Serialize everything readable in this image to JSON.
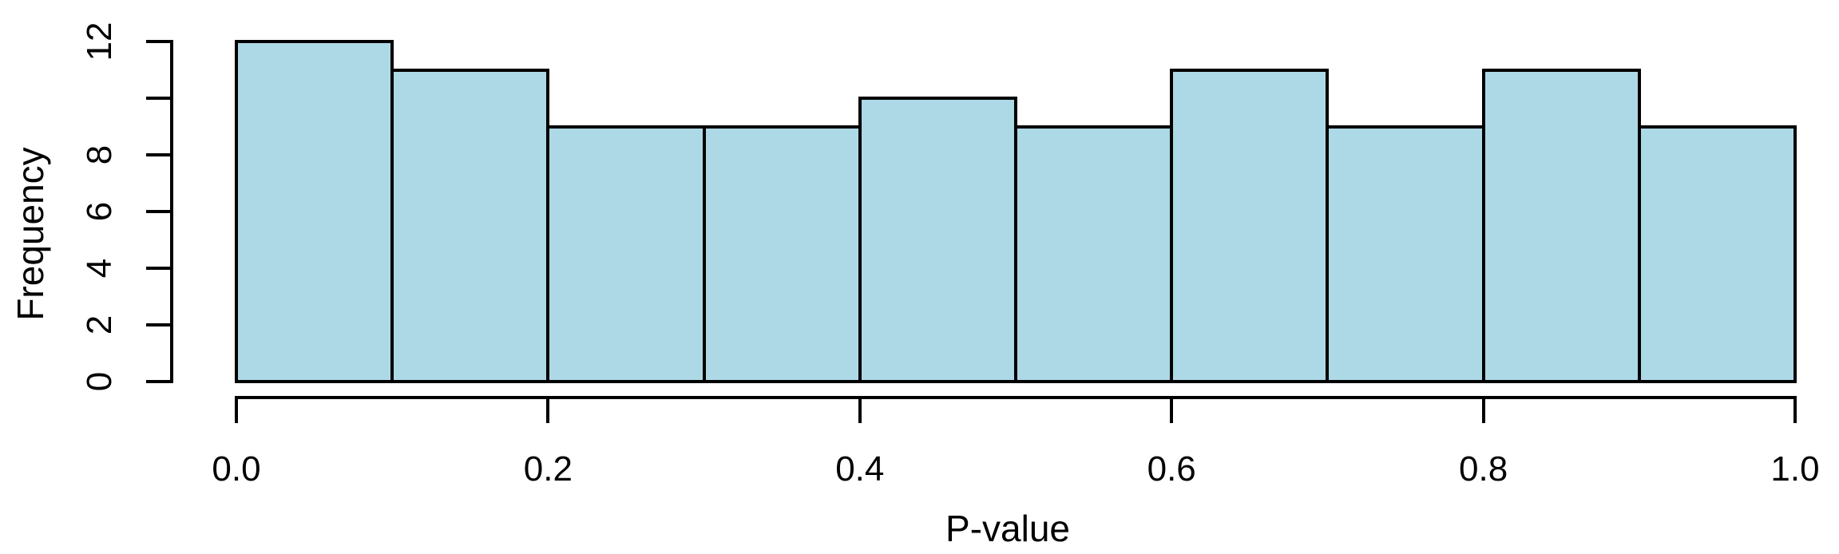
{
  "chart_data": {
    "type": "bar",
    "subtype": "histogram",
    "title": "",
    "xlabel": "P-value",
    "ylabel": "Frequency",
    "bin_start": 0.0,
    "bin_width": 0.1,
    "categories": [
      "0.0-0.1",
      "0.1-0.2",
      "0.2-0.3",
      "0.3-0.4",
      "0.4-0.5",
      "0.5-0.6",
      "0.6-0.7",
      "0.7-0.8",
      "0.8-0.9",
      "0.9-1.0"
    ],
    "values": [
      12,
      11,
      9,
      9,
      10,
      9,
      11,
      9,
      11,
      9
    ],
    "xlim": [
      0.0,
      1.0
    ],
    "ylim": [
      0,
      12
    ],
    "x_ticks": [
      {
        "value": 0.0,
        "label": "0.0"
      },
      {
        "value": 0.2,
        "label": "0.2"
      },
      {
        "value": 0.4,
        "label": "0.4"
      },
      {
        "value": 0.6,
        "label": "0.6"
      },
      {
        "value": 0.8,
        "label": "0.8"
      },
      {
        "value": 1.0,
        "label": "1.0"
      }
    ],
    "y_ticks": [
      {
        "value": 0,
        "label": "0"
      },
      {
        "value": 2,
        "label": "2"
      },
      {
        "value": 4,
        "label": "4"
      },
      {
        "value": 6,
        "label": "6"
      },
      {
        "value": 8,
        "label": "8"
      },
      {
        "value": 10,
        "label": ""
      },
      {
        "value": 12,
        "label": "12"
      }
    ],
    "grid": false,
    "legend": null,
    "colors": {
      "bar_fill": "#ADD8E6",
      "bar_border": "#000000",
      "axis": "#000000",
      "text": "#000000",
      "background": "#FFFFFF"
    }
  }
}
